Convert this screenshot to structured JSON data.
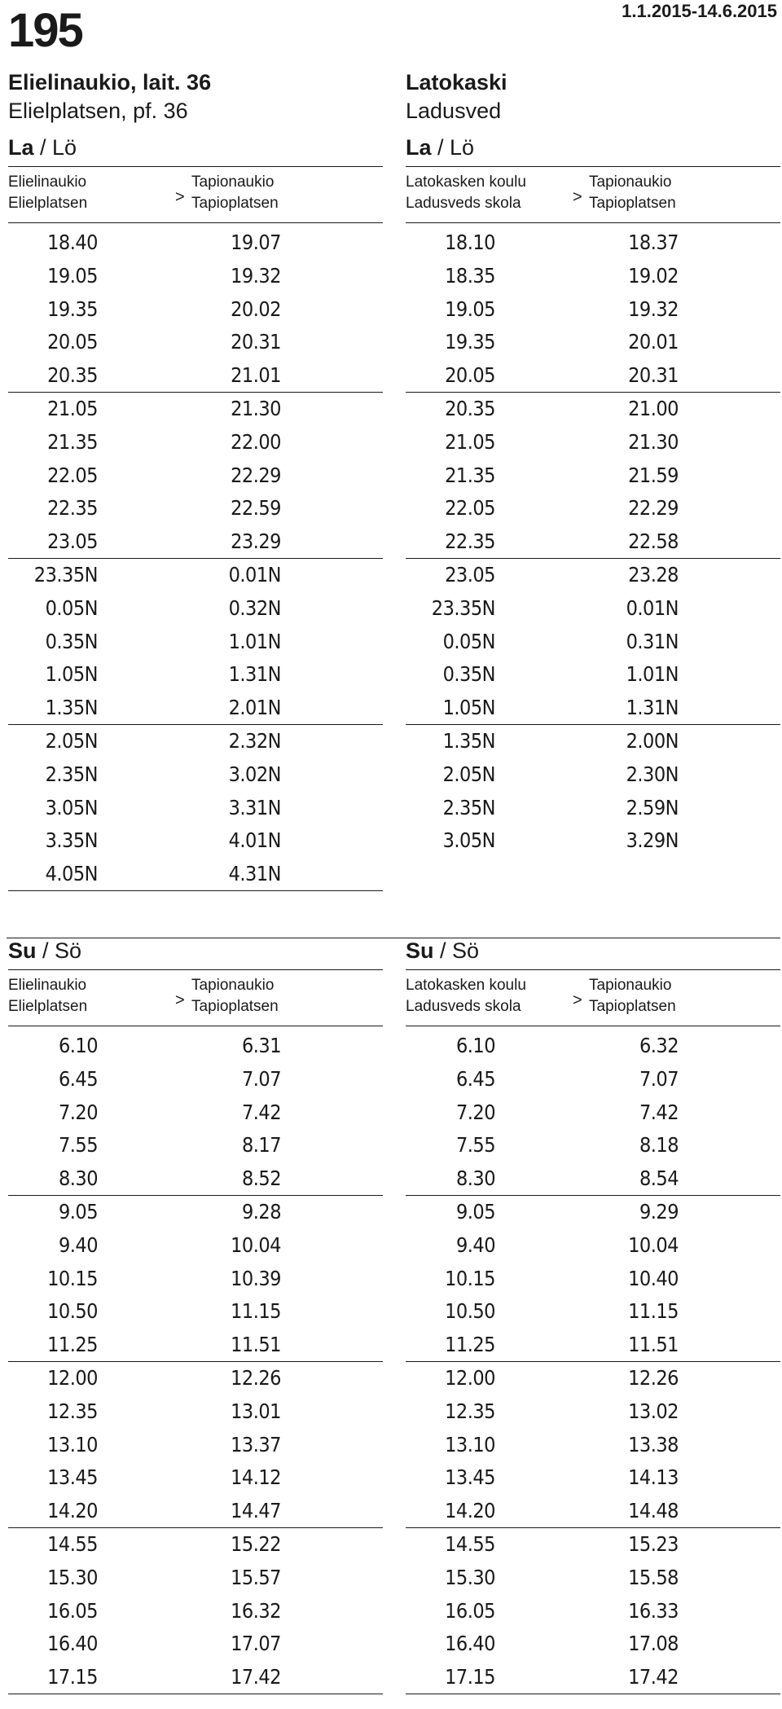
{
  "header": {
    "route_number": "195",
    "date_range": "1.1.2015-14.6.2015"
  },
  "left": {
    "stop_fi": "Elielinaukio, lait. 36",
    "stop_sv": "Elielplatsen, pf. 36",
    "from_fi": "Elielinaukio",
    "from_sv": "Elielplatsen",
    "to_fi": "Tapionaukio",
    "to_sv": "Tapioplatsen",
    "arrow": ">",
    "saturday": {
      "day_fi": "La",
      "day_sep": " / ",
      "day_sv": "Lö",
      "rows": [
        [
          "18.40",
          "19.07"
        ],
        [
          "19.05",
          "19.32"
        ],
        [
          "19.35",
          "20.02"
        ],
        [
          "20.05",
          "20.31"
        ],
        [
          "20.35",
          "21.01"
        ],
        [
          "21.05",
          "21.30"
        ],
        [
          "21.35",
          "22.00"
        ],
        [
          "22.05",
          "22.29"
        ],
        [
          "22.35",
          "22.59"
        ],
        [
          "23.05",
          "23.29"
        ],
        [
          "23.35N",
          "0.01N"
        ],
        [
          "0.05N",
          "0.32N"
        ],
        [
          "0.35N",
          "1.01N"
        ],
        [
          "1.05N",
          "1.31N"
        ],
        [
          "1.35N",
          "2.01N"
        ],
        [
          "2.05N",
          "2.32N"
        ],
        [
          "2.35N",
          "3.02N"
        ],
        [
          "3.05N",
          "3.31N"
        ],
        [
          "3.35N",
          "4.01N"
        ],
        [
          "4.05N",
          "4.31N"
        ]
      ]
    },
    "sunday": {
      "day_fi": "Su",
      "day_sep": " / ",
      "day_sv": "Sö",
      "rows": [
        [
          "6.10",
          "6.31"
        ],
        [
          "6.45",
          "7.07"
        ],
        [
          "7.20",
          "7.42"
        ],
        [
          "7.55",
          "8.17"
        ],
        [
          "8.30",
          "8.52"
        ],
        [
          "9.05",
          "9.28"
        ],
        [
          "9.40",
          "10.04"
        ],
        [
          "10.15",
          "10.39"
        ],
        [
          "10.50",
          "11.15"
        ],
        [
          "11.25",
          "11.51"
        ],
        [
          "12.00",
          "12.26"
        ],
        [
          "12.35",
          "13.01"
        ],
        [
          "13.10",
          "13.37"
        ],
        [
          "13.45",
          "14.12"
        ],
        [
          "14.20",
          "14.47"
        ],
        [
          "14.55",
          "15.22"
        ],
        [
          "15.30",
          "15.57"
        ],
        [
          "16.05",
          "16.32"
        ],
        [
          "16.40",
          "17.07"
        ],
        [
          "17.15",
          "17.42"
        ]
      ]
    }
  },
  "right": {
    "stop_fi": "Latokaski",
    "stop_sv": "Ladusved",
    "from_fi": "Latokasken koulu",
    "from_sv": "Ladusveds skola",
    "to_fi": "Tapionaukio",
    "to_sv": "Tapioplatsen",
    "arrow": ">",
    "saturday": {
      "day_fi": "La",
      "day_sep": " / ",
      "day_sv": "Lö",
      "rows": [
        [
          "18.10",
          "18.37"
        ],
        [
          "18.35",
          "19.02"
        ],
        [
          "19.05",
          "19.32"
        ],
        [
          "19.35",
          "20.01"
        ],
        [
          "20.05",
          "20.31"
        ],
        [
          "20.35",
          "21.00"
        ],
        [
          "21.05",
          "21.30"
        ],
        [
          "21.35",
          "21.59"
        ],
        [
          "22.05",
          "22.29"
        ],
        [
          "22.35",
          "22.58"
        ],
        [
          "23.05",
          "23.28"
        ],
        [
          "23.35N",
          "0.01N"
        ],
        [
          "0.05N",
          "0.31N"
        ],
        [
          "0.35N",
          "1.01N"
        ],
        [
          "1.05N",
          "1.31N"
        ],
        [
          "1.35N",
          "2.00N"
        ],
        [
          "2.05N",
          "2.30N"
        ],
        [
          "2.35N",
          "2.59N"
        ],
        [
          "3.05N",
          "3.29N"
        ]
      ]
    },
    "sunday": {
      "day_fi": "Su",
      "day_sep": " / ",
      "day_sv": "Sö",
      "rows": [
        [
          "6.10",
          "6.32"
        ],
        [
          "6.45",
          "7.07"
        ],
        [
          "7.20",
          "7.42"
        ],
        [
          "7.55",
          "8.18"
        ],
        [
          "8.30",
          "8.54"
        ],
        [
          "9.05",
          "9.29"
        ],
        [
          "9.40",
          "10.04"
        ],
        [
          "10.15",
          "10.40"
        ],
        [
          "10.50",
          "11.15"
        ],
        [
          "11.25",
          "11.51"
        ],
        [
          "12.00",
          "12.26"
        ],
        [
          "12.35",
          "13.02"
        ],
        [
          "13.10",
          "13.38"
        ],
        [
          "13.45",
          "14.13"
        ],
        [
          "14.20",
          "14.48"
        ],
        [
          "14.55",
          "15.23"
        ],
        [
          "15.30",
          "15.58"
        ],
        [
          "16.05",
          "16.33"
        ],
        [
          "16.40",
          "17.08"
        ],
        [
          "17.15",
          "17.42"
        ]
      ]
    }
  }
}
